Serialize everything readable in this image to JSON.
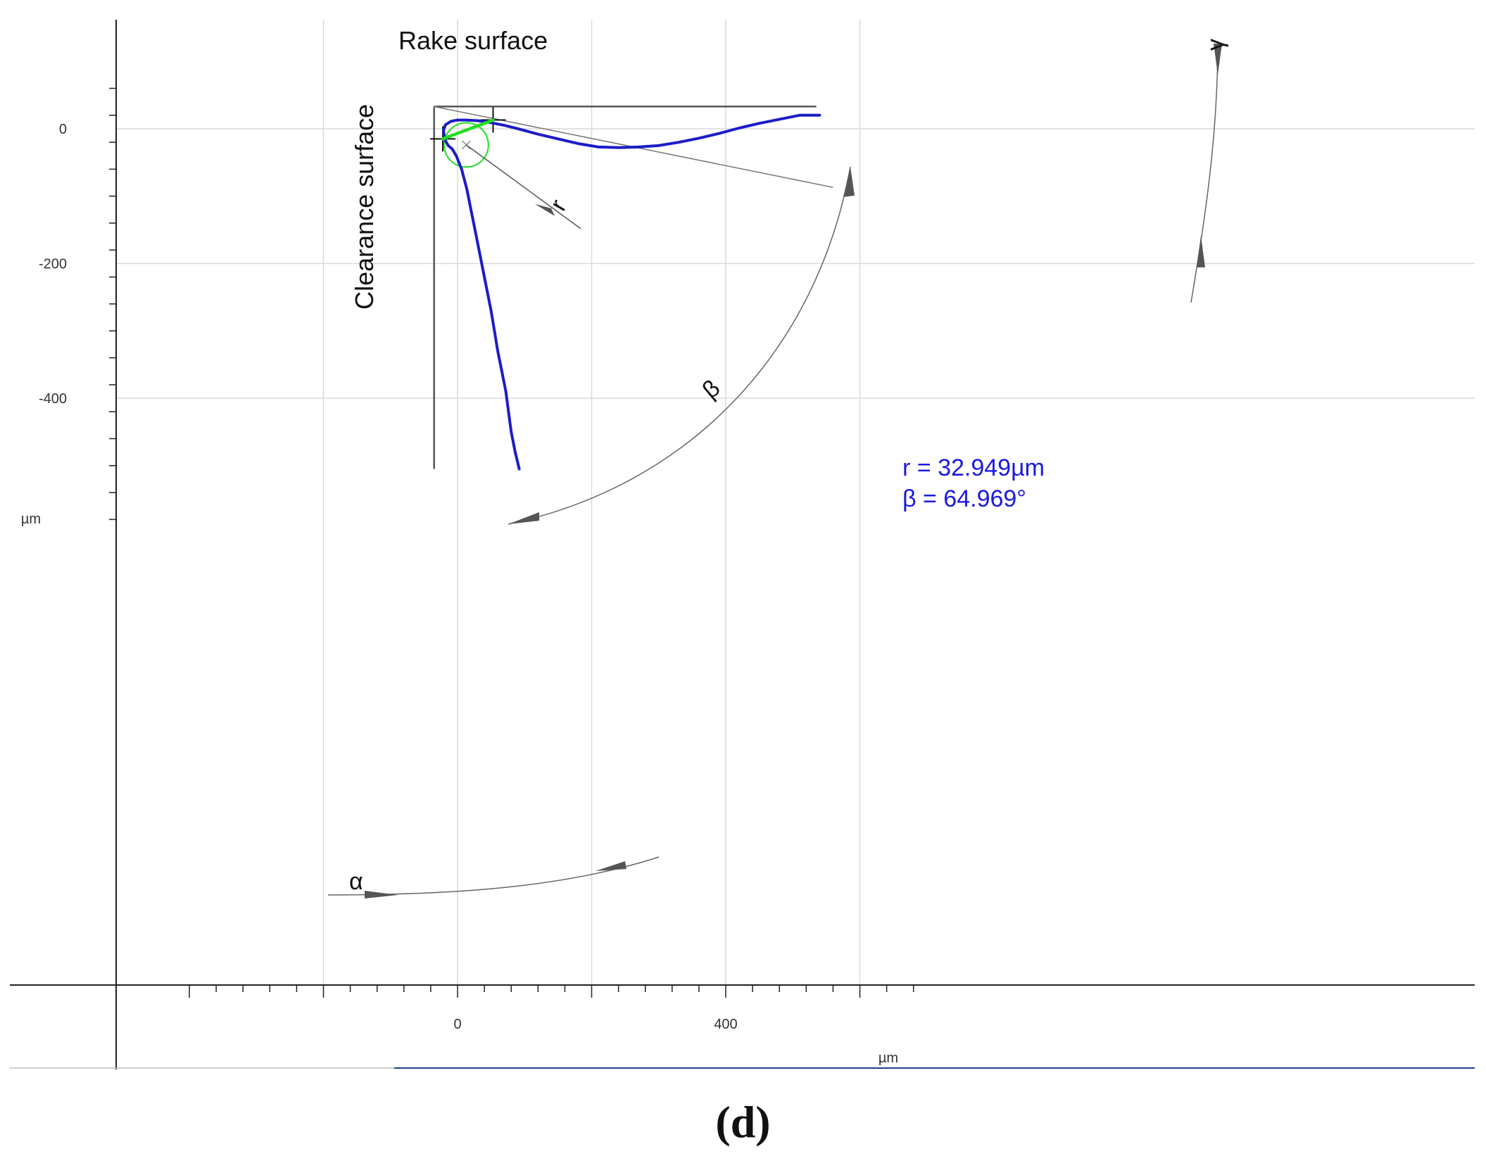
{
  "chart_data": {
    "type": "line",
    "title": "",
    "xlabel": "µm",
    "ylabel": "µm",
    "xlim": [
      -200,
      600
    ],
    "ylim": [
      -520,
      70
    ],
    "x_ticks": [
      0,
      400
    ],
    "y_ticks": [
      0,
      -200,
      -400
    ],
    "grid": true,
    "series": [
      {
        "color": "#1c1cc8",
        "x": [
          92,
          86,
          80,
          76,
          72,
          66,
          60,
          55,
          50,
          44,
          38,
          32,
          26,
          20,
          14,
          6,
          -2,
          -8,
          -14,
          -18,
          -20,
          -21,
          -18,
          -10,
          0,
          12,
          30,
          50,
          70,
          90,
          120,
          150,
          180,
          210,
          240,
          270,
          300,
          330,
          360,
          390,
          420,
          450,
          480,
          510,
          540
        ],
        "y": [
          -505,
          -480,
          -450,
          -420,
          -390,
          -360,
          -330,
          -300,
          -270,
          -240,
          -210,
          -180,
          -150,
          -120,
          -90,
          -60,
          -40,
          -30,
          -25,
          -18,
          -10,
          -2,
          6,
          11,
          13,
          13,
          12,
          9,
          5,
          0,
          -8,
          -15,
          -22,
          -27,
          -28,
          -27,
          -25,
          -20,
          -14,
          -7,
          1,
          8,
          14,
          20,
          20
        ]
      },
      {
        "color": "#22dd22",
        "x": [
          -22,
          53
        ],
        "y": [
          -15,
          13
        ]
      }
    ],
    "reference_lines": {
      "rake_surface": {
        "x": [
          -35,
          535
        ],
        "y": [
          33,
          33
        ]
      },
      "clearance_surface": {
        "x": [
          -35,
          -35
        ],
        "y": [
          33,
          -505
        ]
      },
      "rake_fit": {
        "x": [
          -35,
          560
        ],
        "y": [
          33,
          -87
        ]
      }
    },
    "fitted_circle": {
      "center_x": 13,
      "center_y": -24,
      "radius": 33
    },
    "annotations": {
      "rake_surface": "Rake surface",
      "clearance_surface": "Clearance surface",
      "r_symbol": "r",
      "beta_symbol": "β",
      "alpha_symbol": "α",
      "gamma_symbol": "γ",
      "result_r": "r = 32.949µm",
      "result_beta": "β = 64.969°"
    }
  },
  "caption": "(d)",
  "colors": {
    "profile": "#1c1cc8",
    "circle": "#22dd22",
    "result_text": "#1a1ae0",
    "construction": "#555555",
    "grid": "#d9d9d9"
  }
}
